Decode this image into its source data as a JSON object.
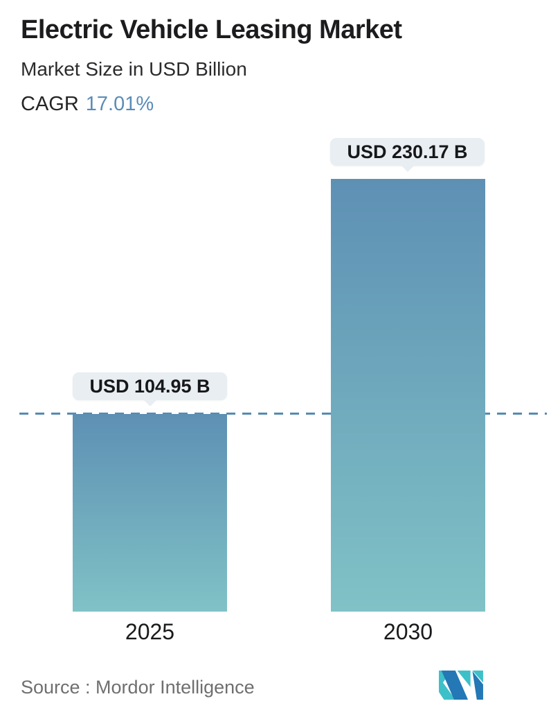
{
  "header": {
    "title": "Electric Vehicle Leasing Market",
    "subtitle": "Market Size in USD Billion",
    "cagr_label": "CAGR",
    "cagr_value": "17.01%"
  },
  "chart_data": {
    "type": "bar",
    "title": "Electric Vehicle Leasing Market",
    "ylabel": "Market Size in USD Billion",
    "unit": "USD Billion",
    "cagr_percent": 17.01,
    "categories": [
      "2025",
      "2030"
    ],
    "values": [
      104.95,
      230.17
    ],
    "value_labels": [
      "USD 104.95 B",
      "USD 230.17 B"
    ],
    "ylim": [
      0,
      230.17
    ],
    "grid": false,
    "reference_line": {
      "style": "dashed",
      "at_value": 104.95
    }
  },
  "bars": [
    {
      "year": "2025",
      "label": "USD 104.95 B",
      "value": 104.95
    },
    {
      "year": "2030",
      "label": "USD 230.17 B",
      "value": 230.17
    }
  ],
  "footer": {
    "source_text": "Source :  Mordor Intelligence",
    "logo_name": "mordor-intelligence-logo"
  },
  "colors": {
    "title_text": "#1c1c1e",
    "cagr_accent": "#5b8cb8",
    "bar_gradient_top": "#5e90b4",
    "bar_gradient_bottom": "#80c2c6",
    "dashed_line": "#568bb1",
    "callout_background": "#e8eef1",
    "source_text": "#6f6f6f",
    "logo_teal": "#3ec0c9",
    "logo_blue": "#2478b5"
  }
}
